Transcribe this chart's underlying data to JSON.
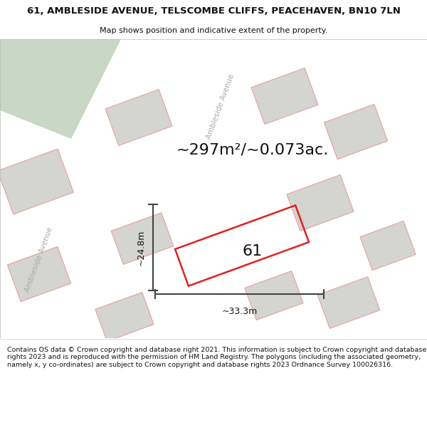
{
  "title": "61, AMBLESIDE AVENUE, TELSCOMBE CLIFFS, PEACEHAVEN, BN10 7LN",
  "subtitle": "Map shows position and indicative extent of the property.",
  "area_text": "~297m²/~0.073ac.",
  "dim_width": "~33.3m",
  "dim_height": "~24.8m",
  "number": "61",
  "footer": "Contains OS data © Crown copyright and database right 2021. This information is subject to Crown copyright and database rights 2023 and is reproduced with the permission of HM Land Registry. The polygons (including the associated geometry, namely x, y co-ordinates) are subject to Crown copyright and database rights 2023 Ordnance Survey 100026316.",
  "map_bg": "#eeeeea",
  "road_color": "#ffffff",
  "plot_outline_color": "#dd2222",
  "dim_line_color": "#444444",
  "text_color": "#111111",
  "green_patch_color": "#c8d8c4",
  "footer_bg": "#ffffff",
  "title_bg": "#ffffff",
  "road_label_color": "#aaaaaa",
  "building_fill": "#d4d4d0",
  "building_stroke": "#e89898",
  "title_fontsize": 9.5,
  "subtitle_fontsize": 8.0,
  "area_fontsize": 16,
  "number_fontsize": 16,
  "dim_fontsize": 9,
  "road_label_fontsize": 7.5,
  "footer_fontsize": 6.8
}
